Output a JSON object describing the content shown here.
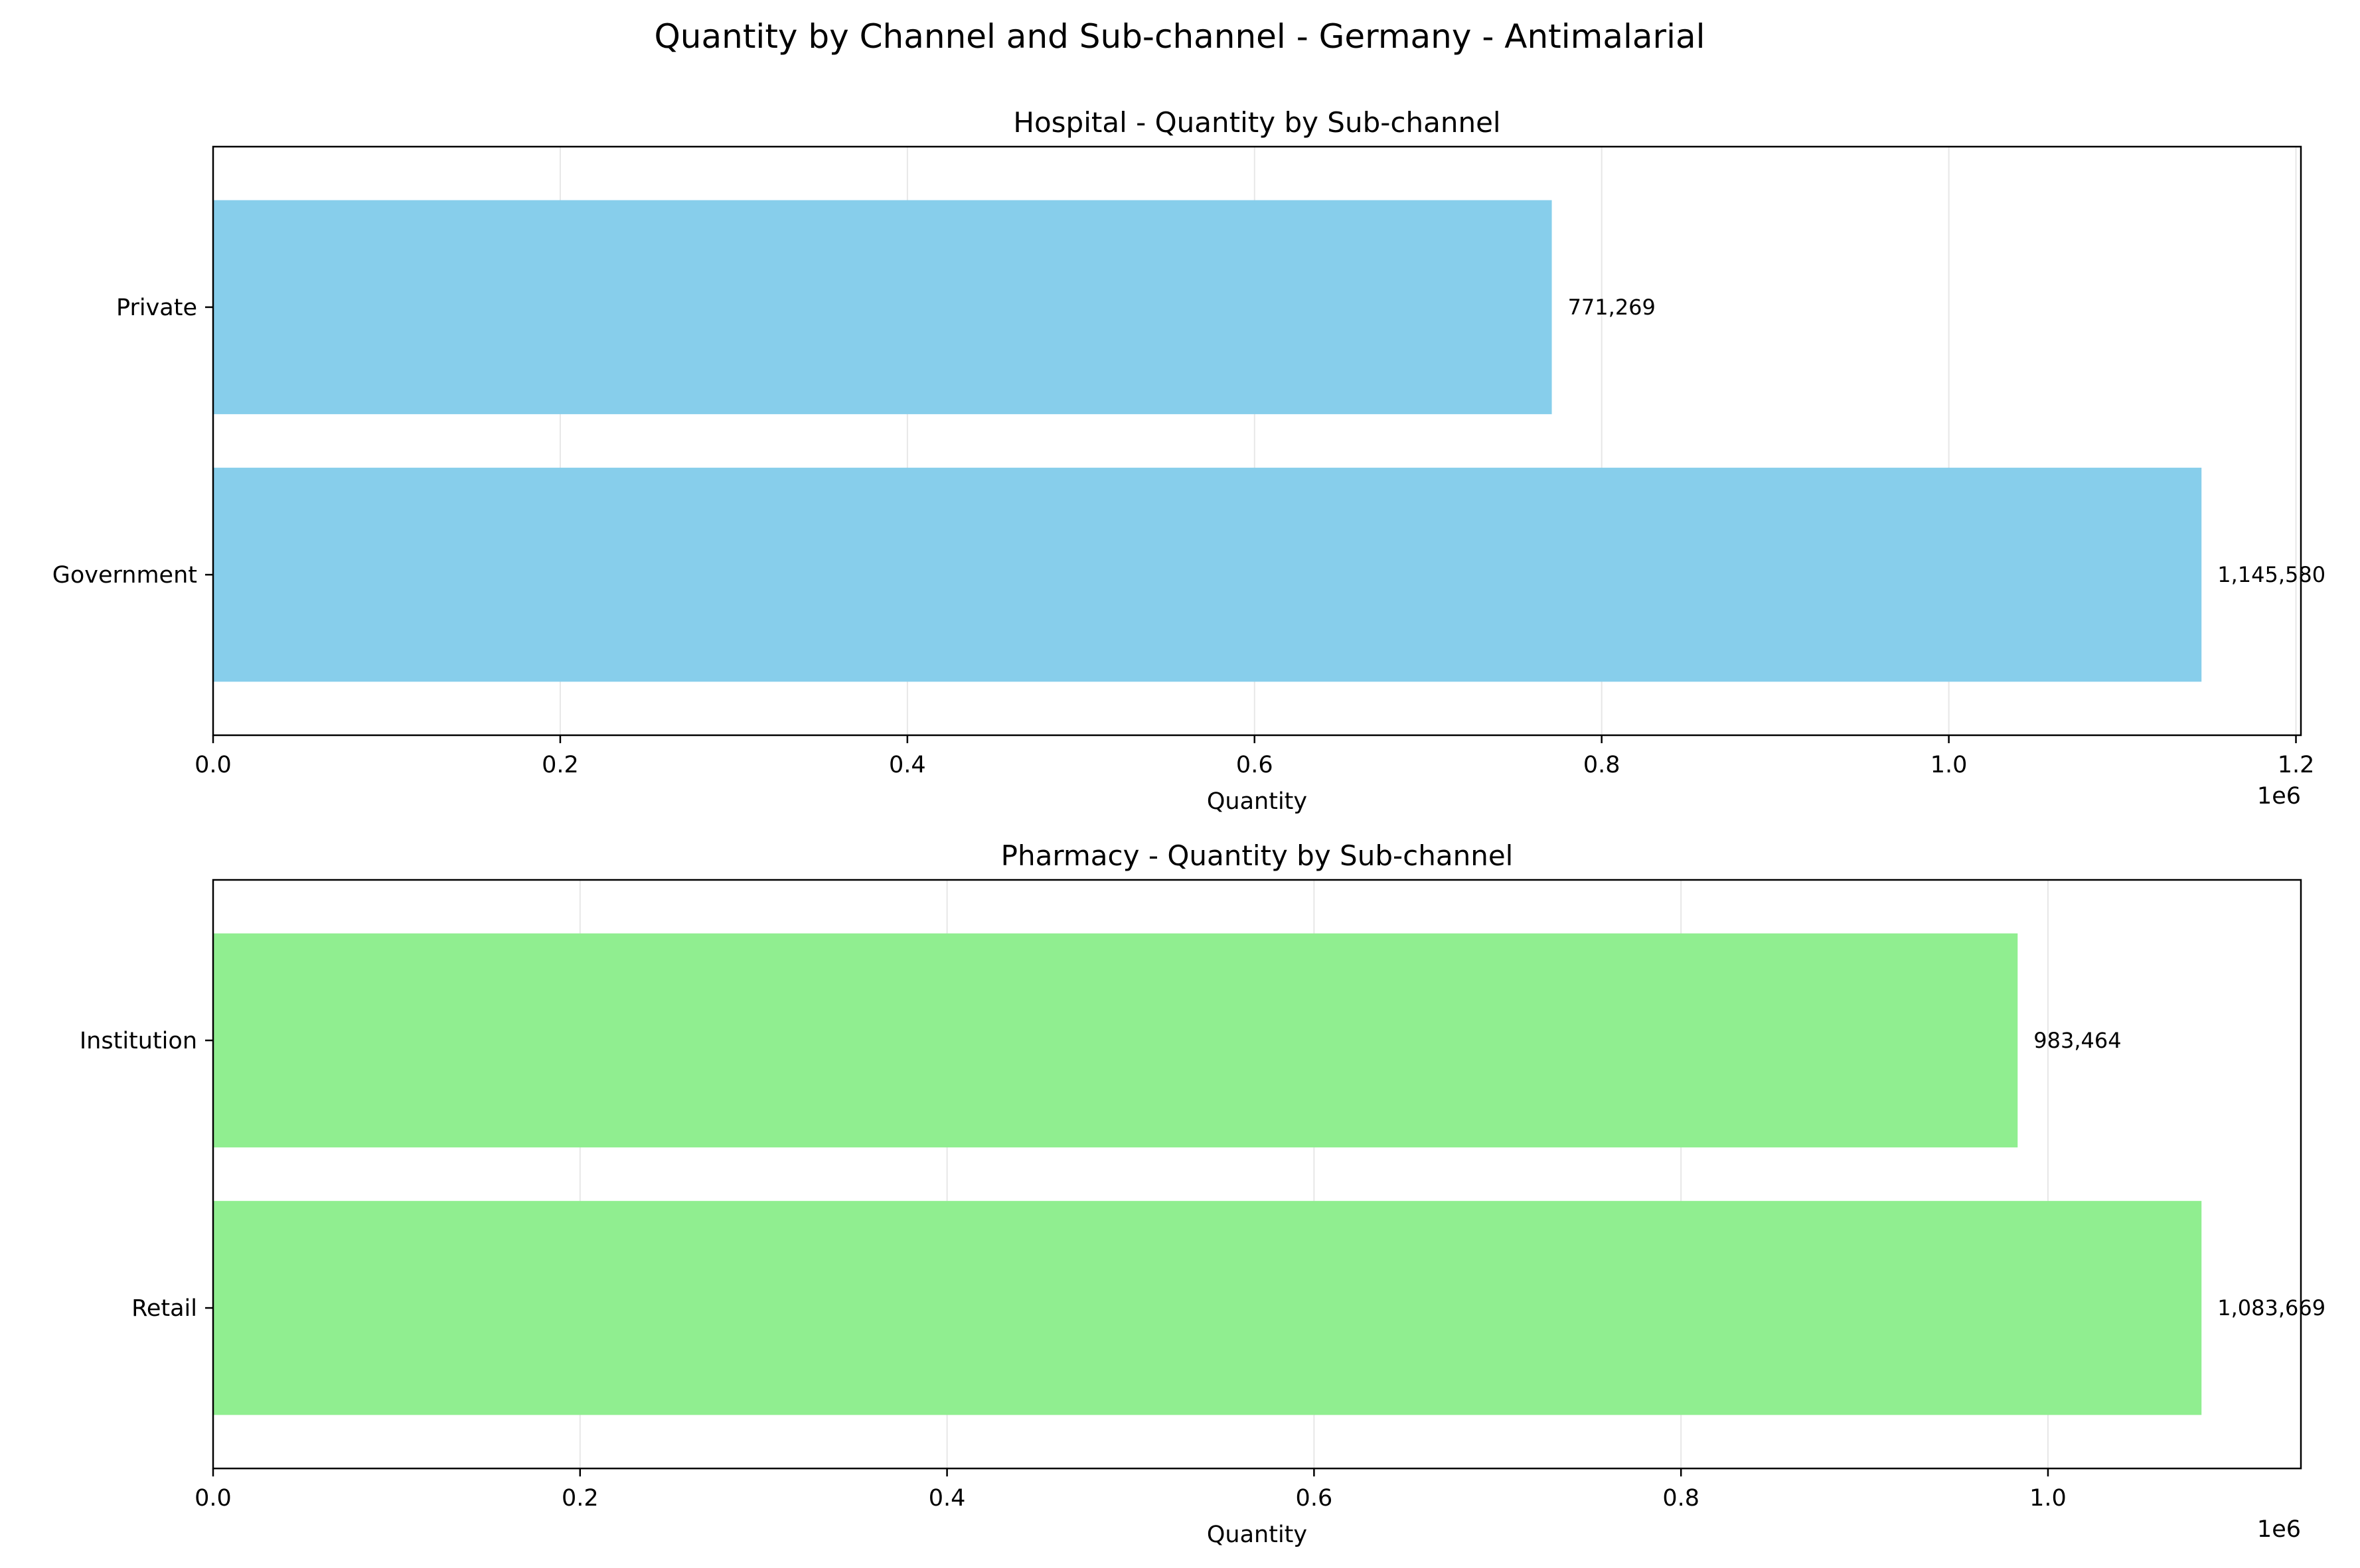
{
  "title": "Quantity by Channel and Sub-channel - Germany - Antimalarial",
  "chart_data": [
    {
      "type": "bar",
      "orientation": "horizontal",
      "title": "Hospital - Quantity by Sub-channel",
      "xlabel": "Quantity",
      "ylabel": "",
      "x_offset_label": "1e6",
      "categories": [
        "Government",
        "Private"
      ],
      "values": [
        1145580,
        771269
      ],
      "value_labels": [
        "1,145,580",
        "771,269"
      ],
      "xlim": [
        0,
        1202859
      ],
      "x_ticks": [
        0,
        200000,
        400000,
        600000,
        800000,
        1000000,
        1200000
      ],
      "x_tick_labels": [
        "0.0",
        "0.2",
        "0.4",
        "0.6",
        "0.8",
        "1.0",
        "1.2"
      ],
      "grid": true,
      "color": "#87ceeb"
    },
    {
      "type": "bar",
      "orientation": "horizontal",
      "title": "Pharmacy - Quantity by Sub-channel",
      "xlabel": "Quantity",
      "ylabel": "",
      "x_offset_label": "1e6",
      "categories": [
        "Retail",
        "Institution"
      ],
      "values": [
        1083669,
        983464
      ],
      "value_labels": [
        "1,083,669",
        "983,464"
      ],
      "xlim": [
        0,
        1137852
      ],
      "x_ticks": [
        0,
        200000,
        400000,
        600000,
        800000,
        1000000
      ],
      "x_tick_labels": [
        "0.0",
        "0.2",
        "0.4",
        "0.6",
        "0.8",
        "1.0"
      ],
      "grid": true,
      "color": "#90ee90"
    }
  ]
}
